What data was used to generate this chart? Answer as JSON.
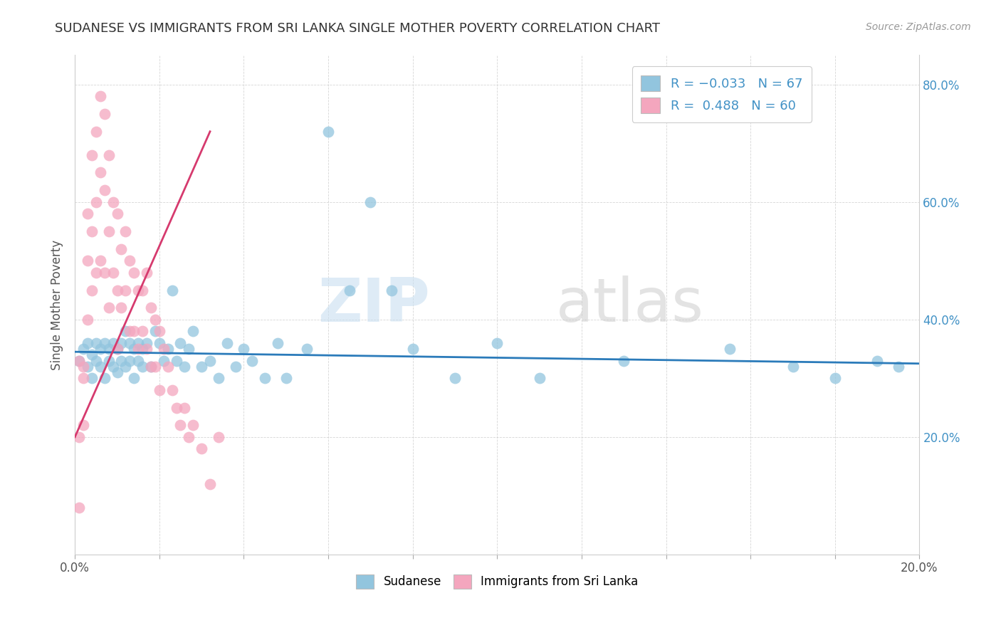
{
  "title": "SUDANESE VS IMMIGRANTS FROM SRI LANKA SINGLE MOTHER POVERTY CORRELATION CHART",
  "source": "Source: ZipAtlas.com",
  "ylabel": "Single Mother Poverty",
  "xlim": [
    0.0,
    0.2
  ],
  "ylim": [
    0.0,
    0.85
  ],
  "blue_color": "#92c5de",
  "pink_color": "#f4a6be",
  "trend_blue": "#2b7bba",
  "trend_pink": "#d63a6e",
  "watermark_zip": "ZIP",
  "watermark_atlas": "atlas",
  "blue_scatter_x": [
    0.001,
    0.002,
    0.003,
    0.003,
    0.004,
    0.004,
    0.005,
    0.005,
    0.006,
    0.006,
    0.007,
    0.007,
    0.008,
    0.008,
    0.009,
    0.009,
    0.01,
    0.01,
    0.011,
    0.011,
    0.012,
    0.012,
    0.013,
    0.013,
    0.014,
    0.014,
    0.015,
    0.015,
    0.016,
    0.016,
    0.017,
    0.018,
    0.019,
    0.02,
    0.021,
    0.022,
    0.023,
    0.024,
    0.025,
    0.026,
    0.027,
    0.028,
    0.03,
    0.032,
    0.034,
    0.036,
    0.038,
    0.04,
    0.042,
    0.045,
    0.048,
    0.05,
    0.055,
    0.06,
    0.065,
    0.07,
    0.075,
    0.08,
    0.09,
    0.1,
    0.11,
    0.13,
    0.155,
    0.17,
    0.18,
    0.19,
    0.195
  ],
  "blue_scatter_y": [
    0.33,
    0.35,
    0.32,
    0.36,
    0.3,
    0.34,
    0.33,
    0.36,
    0.32,
    0.35,
    0.3,
    0.36,
    0.33,
    0.35,
    0.32,
    0.36,
    0.31,
    0.35,
    0.33,
    0.36,
    0.32,
    0.38,
    0.33,
    0.36,
    0.3,
    0.35,
    0.33,
    0.36,
    0.32,
    0.35,
    0.36,
    0.32,
    0.38,
    0.36,
    0.33,
    0.35,
    0.45,
    0.33,
    0.36,
    0.32,
    0.35,
    0.38,
    0.32,
    0.33,
    0.3,
    0.36,
    0.32,
    0.35,
    0.33,
    0.3,
    0.36,
    0.3,
    0.35,
    0.72,
    0.45,
    0.6,
    0.45,
    0.35,
    0.3,
    0.36,
    0.3,
    0.33,
    0.35,
    0.32,
    0.3,
    0.33,
    0.32
  ],
  "pink_scatter_x": [
    0.001,
    0.001,
    0.002,
    0.002,
    0.003,
    0.003,
    0.003,
    0.004,
    0.004,
    0.004,
    0.005,
    0.005,
    0.005,
    0.006,
    0.006,
    0.006,
    0.007,
    0.007,
    0.007,
    0.008,
    0.008,
    0.008,
    0.009,
    0.009,
    0.01,
    0.01,
    0.01,
    0.011,
    0.011,
    0.012,
    0.012,
    0.013,
    0.013,
    0.014,
    0.014,
    0.015,
    0.015,
    0.016,
    0.016,
    0.017,
    0.017,
    0.018,
    0.018,
    0.019,
    0.019,
    0.02,
    0.02,
    0.021,
    0.022,
    0.023,
    0.024,
    0.025,
    0.026,
    0.027,
    0.028,
    0.03,
    0.032,
    0.034,
    0.001,
    0.002
  ],
  "pink_scatter_y": [
    0.2,
    0.08,
    0.32,
    0.22,
    0.58,
    0.5,
    0.4,
    0.68,
    0.55,
    0.45,
    0.72,
    0.6,
    0.48,
    0.78,
    0.65,
    0.5,
    0.75,
    0.62,
    0.48,
    0.68,
    0.55,
    0.42,
    0.6,
    0.48,
    0.58,
    0.45,
    0.35,
    0.52,
    0.42,
    0.55,
    0.45,
    0.5,
    0.38,
    0.48,
    0.38,
    0.45,
    0.35,
    0.45,
    0.38,
    0.48,
    0.35,
    0.42,
    0.32,
    0.4,
    0.32,
    0.38,
    0.28,
    0.35,
    0.32,
    0.28,
    0.25,
    0.22,
    0.25,
    0.2,
    0.22,
    0.18,
    0.12,
    0.2,
    0.33,
    0.3
  ]
}
